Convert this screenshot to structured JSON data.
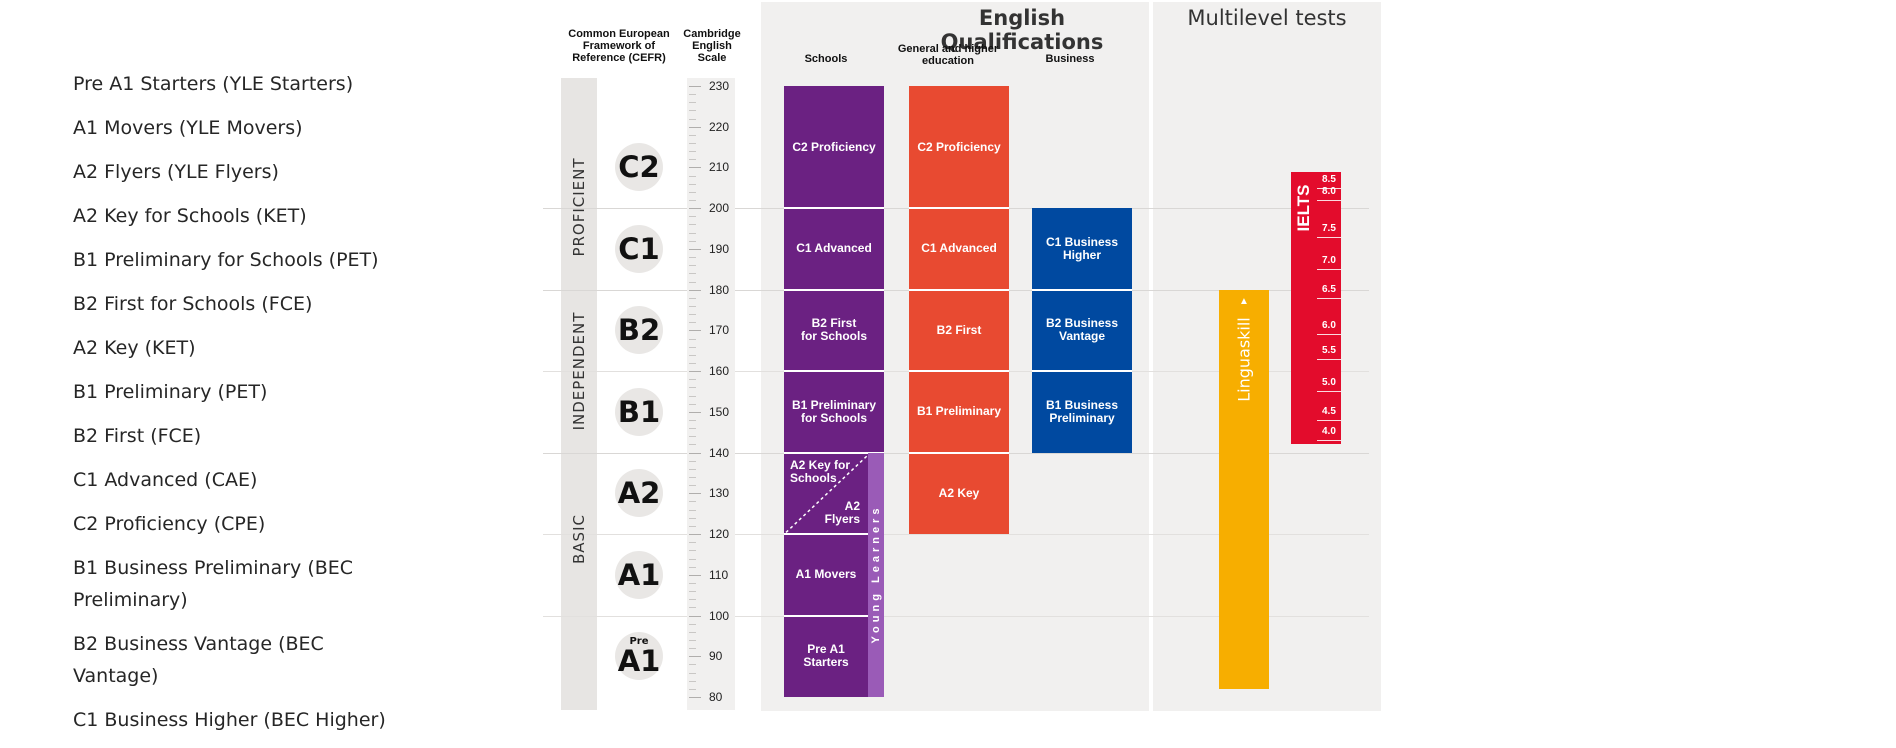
{
  "exam_list": [
    "Pre A1 Starters (YLE Starters)",
    "A1 Movers (YLE Movers)",
    "A2 Flyers (YLE Flyers)",
    "A2 Key for Schools (KET)",
    "B1 Preliminary for Schools (PET)",
    "B2 First for Schools (FCE)",
    "A2 Key (KET)",
    "B1 Preliminary (PET)",
    "B2 First (FCE)",
    "C1 Advanced (CAE)",
    "C2 Proficiency (CPE)",
    "B1 Business Preliminary (BEC Preliminary)",
    "B2 Business Vantage (BEC Vantage)",
    "C1 Business Higher (BEC Higher)"
  ],
  "headers": {
    "cefr": "Common European Framework of Reference (CEFR)",
    "scale": "Cambridge English Scale",
    "schools": "Schools",
    "general": "General and higher education",
    "business": "Business"
  },
  "titles": {
    "english_qualifications": "English Qualifications",
    "multilevel": "Multilevel tests"
  },
  "bands": {
    "proficient": "PROFICIENT",
    "independent": "INDEPENDENT",
    "basic": "BASIC"
  },
  "cefr_levels": [
    {
      "label": "C2",
      "center": 210
    },
    {
      "label": "C1",
      "center": 190
    },
    {
      "label": "B2",
      "center": 170
    },
    {
      "label": "B1",
      "center": 150
    },
    {
      "label": "A2",
      "center": 130
    },
    {
      "label": "A1",
      "center": 110
    }
  ],
  "pre_a1": {
    "small": "Pre",
    "big": "A1",
    "center": 90
  },
  "scale": {
    "min": 80,
    "max": 230,
    "labels": [
      230,
      220,
      210,
      200,
      190,
      180,
      170,
      160,
      150,
      140,
      130,
      120,
      110,
      100,
      90,
      80
    ]
  },
  "colors": {
    "schools": "#6b2182",
    "general": "#e84a31",
    "business": "#0049a0",
    "linguaskill": "#f7ae00",
    "ielts": "#e30c2c",
    "young_learners": "#9a5bb7",
    "panel": "#f1f0ef"
  },
  "schools_blocks": [
    {
      "label": "C2 Proficiency",
      "from": 200,
      "to": 230
    },
    {
      "label": "C1 Advanced",
      "from": 180,
      "to": 200
    },
    {
      "label": "B2 First\nfor Schools",
      "from": 160,
      "to": 180
    },
    {
      "label": "B1 Preliminary\nfor Schools",
      "from": 140,
      "to": 160
    },
    {
      "label": "",
      "from": 80,
      "to": 140
    }
  ],
  "schools_young": {
    "key_for_schools": "A2 Key for\nSchools",
    "flyers": "A2\nFlyers",
    "movers": "A1 Movers",
    "starters": "Pre A1\nStarters",
    "young_learners": "Young Learners"
  },
  "general_blocks": [
    {
      "label": "C2 Proficiency",
      "from": 200,
      "to": 230
    },
    {
      "label": "C1 Advanced",
      "from": 180,
      "to": 200
    },
    {
      "label": "B2 First",
      "from": 160,
      "to": 180
    },
    {
      "label": "B1 Preliminary",
      "from": 140,
      "to": 160
    },
    {
      "label": "A2 Key",
      "from": 120,
      "to": 140
    }
  ],
  "business_blocks": [
    {
      "label": "C1 Business\nHigher",
      "from": 180,
      "to": 200
    },
    {
      "label": "B2 Business\nVantage",
      "from": 160,
      "to": 180
    },
    {
      "label": "B1 Business\nPreliminary",
      "from": 140,
      "to": 160
    }
  ],
  "linguaskill": {
    "label": "Linguaskill",
    "from": 82,
    "to": 180
  },
  "ielts": {
    "label": "IELTS",
    "from": 142,
    "to": 209,
    "scores": [
      {
        "score": "8.5",
        "at": 207
      },
      {
        "score": "8.0",
        "at": 204
      },
      {
        "score": "7.5",
        "at": 195
      },
      {
        "score": "7.0",
        "at": 187
      },
      {
        "score": "6.5",
        "at": 180
      },
      {
        "score": "6.0",
        "at": 171
      },
      {
        "score": "5.5",
        "at": 165
      },
      {
        "score": "5.0",
        "at": 157
      },
      {
        "score": "4.5",
        "at": 150
      },
      {
        "score": "4.0",
        "at": 145
      }
    ]
  }
}
